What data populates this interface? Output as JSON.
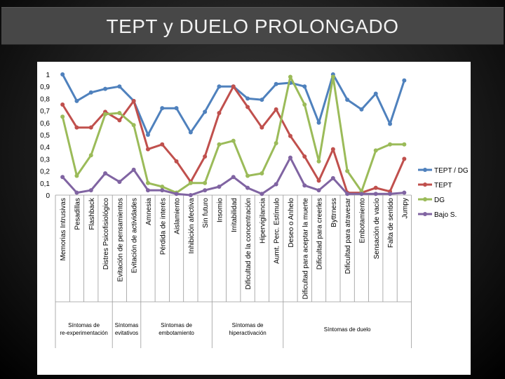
{
  "title": "TEPT y DUELO PROLONGADO",
  "chart_data": {
    "type": "line",
    "ylim": [
      0,
      1
    ],
    "yticks": [
      "0",
      "0,1",
      "0,2",
      "0,3",
      "0,4",
      "0,5",
      "0,6",
      "0,7",
      "0,8",
      "0,9",
      "1"
    ],
    "legend_position": "right",
    "categories": [
      "Memorias Intrusivas",
      "Pesadillas",
      "Flashback",
      "Distres Psicofisiológico",
      "Evitación de pensamientos",
      "Evitación de actividades",
      "Amnesia",
      "Pérdida de interés",
      "Aislamiento",
      "Inhibición afectiva",
      "Sin futuro",
      "Insomio",
      "Irritabilidad",
      "Dificultad de la concentración",
      "Hipervigilancia",
      "Aumt. Perc. Estímulo",
      "Deseo o Anhelo",
      "Dificultad para aceptar la muerte",
      "Dificultad para creerles",
      "Byttrness",
      "Dificultad para atravesar",
      "Embotamiento",
      "Sensación de vacío",
      "Falta de sentido",
      "Jumpy"
    ],
    "groups": [
      {
        "label_lines": [
          "Síntomas de",
          "re-experimentación"
        ],
        "from": 0,
        "to": 3
      },
      {
        "label_lines": [
          "Síntomas",
          "evitativos"
        ],
        "from": 4,
        "to": 5
      },
      {
        "label_lines": [
          "Síntomas de",
          "embotamiento"
        ],
        "from": 6,
        "to": 10
      },
      {
        "label_lines": [
          "Síntomas de",
          "hiperactivación"
        ],
        "from": 11,
        "to": 15
      },
      {
        "label_lines": [
          "Síntomas de duelo"
        ],
        "from": 16,
        "to": 24
      }
    ],
    "series": [
      {
        "name": "TEPT / DG",
        "color": "#4F81BD",
        "values": [
          1.0,
          0.78,
          0.85,
          0.88,
          0.9,
          0.78,
          0.5,
          0.72,
          0.72,
          0.52,
          0.69,
          0.9,
          0.9,
          0.8,
          0.79,
          0.92,
          0.93,
          0.9,
          0.6,
          1.0,
          0.79,
          0.71,
          0.84,
          0.59,
          0.95
        ]
      },
      {
        "name": "TEPT",
        "color": "#C0504D",
        "values": [
          0.75,
          0.56,
          0.56,
          0.69,
          0.62,
          0.78,
          0.38,
          0.42,
          0.28,
          0.11,
          0.32,
          0.68,
          0.9,
          0.73,
          0.56,
          0.71,
          0.49,
          0.32,
          0.12,
          0.38,
          0.02,
          0.02,
          0.06,
          0.03,
          0.3
        ]
      },
      {
        "name": "DG",
        "color": "#9BBB59",
        "values": [
          0.65,
          0.16,
          0.33,
          0.67,
          0.68,
          0.58,
          0.1,
          0.07,
          0.02,
          0.1,
          0.1,
          0.42,
          0.45,
          0.16,
          0.18,
          0.43,
          0.98,
          0.75,
          0.28,
          0.98,
          0.2,
          0.03,
          0.37,
          0.42,
          0.42
        ]
      },
      {
        "name": "Bajo S.",
        "color": "#8064A2",
        "values": [
          0.15,
          0.02,
          0.04,
          0.18,
          0.11,
          0.21,
          0.04,
          0.04,
          0.01,
          0.0,
          0.04,
          0.07,
          0.15,
          0.06,
          0.01,
          0.09,
          0.31,
          0.08,
          0.04,
          0.14,
          0.01,
          0.01,
          0.01,
          0.01,
          0.02
        ]
      }
    ]
  }
}
